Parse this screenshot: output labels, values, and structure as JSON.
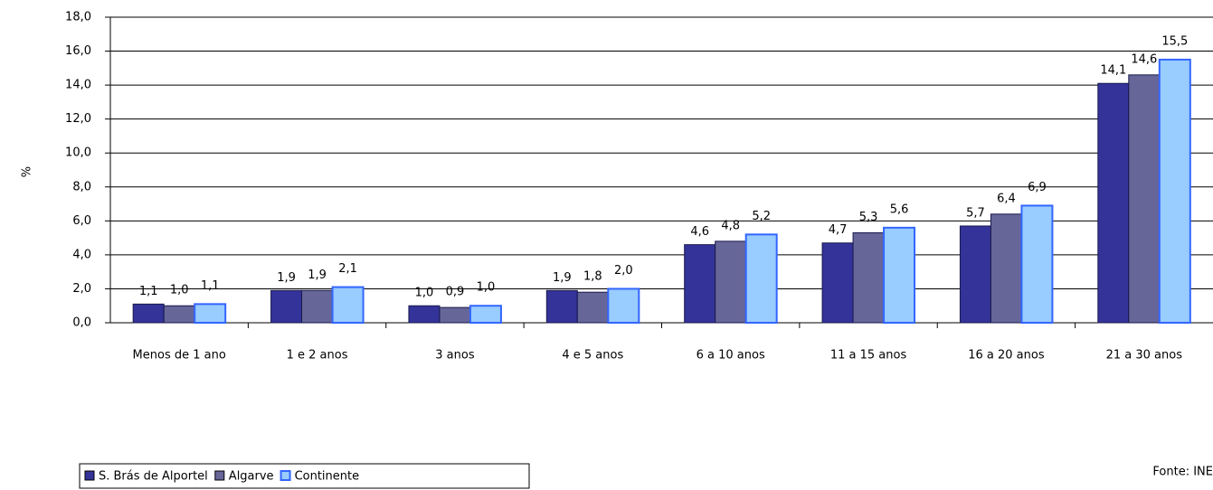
{
  "chart_data": {
    "type": "bar",
    "y_label": "%",
    "categories": [
      "Menos de 1 ano",
      "1 e 2 anos",
      "3 anos",
      "4 e 5 anos",
      "6 a 10 anos",
      "11 a 15 anos",
      "16 a 20 anos",
      "21 a 30 anos"
    ],
    "series": [
      {
        "name": "S. Brás de Alportel",
        "color": "#333399",
        "values": [
          1.1,
          1.9,
          1.0,
          1.9,
          4.6,
          4.7,
          5.7,
          14.1
        ],
        "value_labels": [
          "1,1",
          "1,9",
          "1,0",
          "1,9",
          "4,6",
          "4,7",
          "5,7",
          "14,1"
        ]
      },
      {
        "name": "Algarve",
        "color": "#666699",
        "values": [
          1.0,
          1.9,
          0.9,
          1.8,
          4.8,
          5.3,
          6.4,
          14.6
        ],
        "value_labels": [
          "1,0",
          "1,9",
          "0,9",
          "1,8",
          "4,8",
          "5,3",
          "6,4",
          "14,6"
        ]
      },
      {
        "name": "Continente",
        "color": "#99ccff",
        "values": [
          1.1,
          2.1,
          1.0,
          2.0,
          5.2,
          5.6,
          6.9,
          15.5
        ],
        "value_labels": [
          "1,1",
          "2,1",
          "1,0",
          "2,0",
          "5,2",
          "5,6",
          "6,9",
          "15,5"
        ]
      }
    ],
    "ylim": [
      0,
      18
    ],
    "yticks": [
      {
        "value": 0,
        "label": "0,0"
      },
      {
        "value": 2,
        "label": "2,0"
      },
      {
        "value": 4,
        "label": "4,0"
      },
      {
        "value": 6,
        "label": "6,0"
      },
      {
        "value": 8,
        "label": "8,0"
      },
      {
        "value": 10,
        "label": "10,0"
      },
      {
        "value": 12,
        "label": "12,0"
      },
      {
        "value": 14,
        "label": "14,0"
      },
      {
        "value": 16,
        "label": "16,0"
      },
      {
        "value": 18,
        "label": "18,0"
      }
    ],
    "grid": true,
    "legend": "bottom-left",
    "source": "Fonte: INE"
  }
}
